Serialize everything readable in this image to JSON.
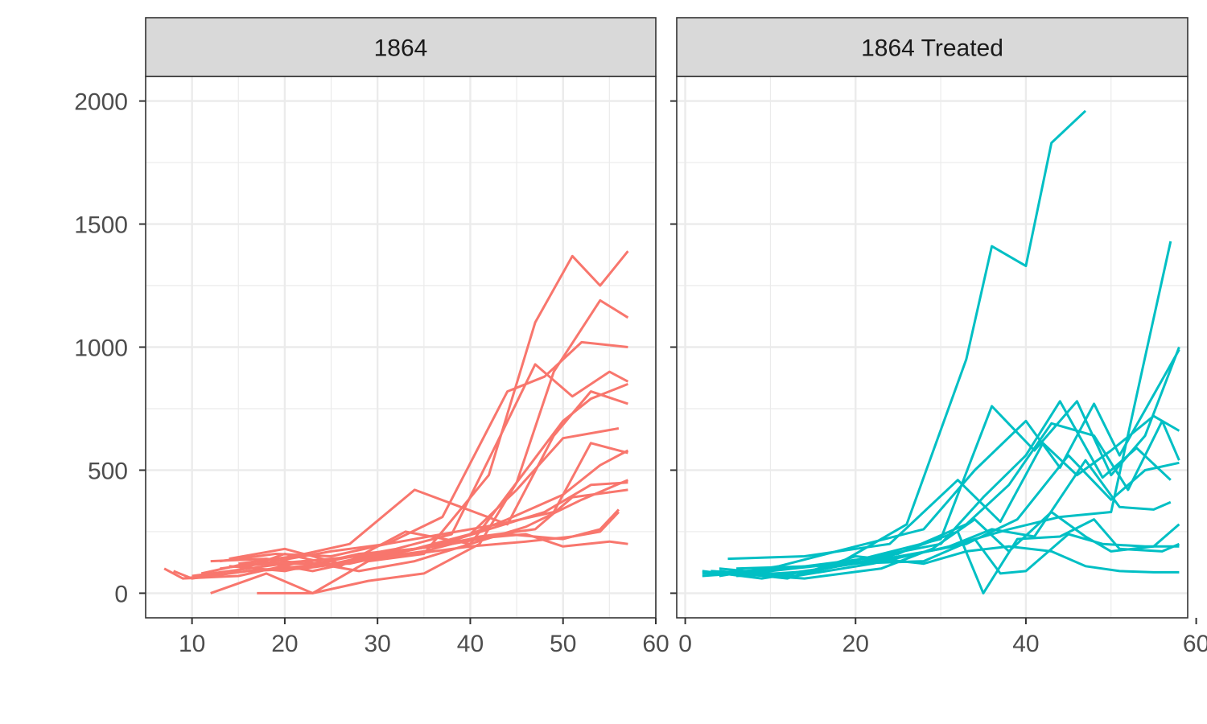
{
  "chart_data": [
    {
      "type": "line",
      "panel": "1864",
      "strip_label": "1864",
      "color": "#F8766D",
      "xlim": [
        5,
        60
      ],
      "ylim": [
        -100,
        2100
      ],
      "x_ticks": [
        10,
        20,
        30,
        40,
        50,
        60
      ],
      "x_tick_labels": [
        "10",
        "20",
        "30",
        "40",
        "50",
        "60"
      ],
      "y_ticks": [
        0,
        500,
        1000,
        1500,
        2000
      ],
      "y_tick_labels": [
        "0",
        "500",
        "1000",
        "1500",
        "2000"
      ],
      "grid": true,
      "series": [
        {
          "x": [
            12,
            18,
            23,
            29,
            35,
            42,
            47,
            51,
            54,
            57
          ],
          "y": [
            0,
            80,
            0,
            130,
            160,
            480,
            1100,
            1370,
            1250,
            1390
          ]
        },
        {
          "x": [
            17,
            23,
            29,
            35,
            41,
            45,
            49,
            54,
            57
          ],
          "y": [
            0,
            0,
            50,
            80,
            200,
            450,
            900,
            1190,
            1120
          ]
        },
        {
          "x": [
            13,
            19,
            25,
            31,
            37,
            44,
            48,
            52,
            57
          ],
          "y": [
            130,
            160,
            150,
            200,
            310,
            820,
            880,
            1020,
            1000
          ]
        },
        {
          "x": [
            14,
            20,
            26,
            32,
            38,
            43,
            47,
            51,
            55,
            57
          ],
          "y": [
            110,
            90,
            140,
            180,
            240,
            620,
            930,
            800,
            900,
            860
          ]
        },
        {
          "x": [
            7,
            9,
            14,
            20,
            26,
            33,
            40,
            45,
            50,
            53,
            57
          ],
          "y": [
            100,
            60,
            80,
            160,
            110,
            250,
            200,
            450,
            700,
            790,
            850
          ]
        },
        {
          "x": [
            15,
            21,
            27,
            34,
            39,
            44,
            49,
            53,
            57
          ],
          "y": [
            120,
            150,
            200,
            420,
            350,
            280,
            640,
            820,
            770
          ]
        },
        {
          "x": [
            8,
            10,
            16,
            22,
            28,
            34,
            40,
            45,
            50,
            56
          ],
          "y": [
            90,
            60,
            90,
            110,
            160,
            180,
            240,
            420,
            630,
            670
          ]
        },
        {
          "x": [
            9,
            15,
            21,
            27,
            33,
            38,
            44,
            50,
            54,
            57
          ],
          "y": [
            60,
            70,
            120,
            120,
            170,
            210,
            300,
            400,
            520,
            580
          ]
        },
        {
          "x": [
            12,
            18,
            24,
            30,
            36,
            42,
            48,
            53,
            57
          ],
          "y": [
            130,
            140,
            110,
            160,
            190,
            260,
            330,
            440,
            450
          ]
        },
        {
          "x": [
            10,
            16,
            22,
            28,
            34,
            40,
            46,
            52,
            57
          ],
          "y": [
            70,
            100,
            130,
            90,
            130,
            200,
            270,
            380,
            460
          ]
        },
        {
          "x": [
            11,
            17,
            23,
            29,
            35,
            41,
            47,
            51,
            57
          ],
          "y": [
            80,
            130,
            90,
            140,
            170,
            230,
            260,
            390,
            420
          ]
        },
        {
          "x": [
            13,
            19,
            25,
            31,
            37,
            43,
            49,
            53,
            57
          ],
          "y": [
            100,
            130,
            170,
            200,
            240,
            280,
            330,
            610,
            570
          ]
        },
        {
          "x": [
            14,
            20,
            26,
            32,
            38,
            44,
            50,
            54,
            56
          ],
          "y": [
            140,
            180,
            120,
            170,
            200,
            240,
            220,
            260,
            340
          ]
        },
        {
          "x": [
            15,
            22,
            28,
            34,
            40,
            46,
            50,
            55,
            57
          ],
          "y": [
            110,
            130,
            150,
            180,
            220,
            240,
            190,
            210,
            200
          ]
        },
        {
          "x": [
            16,
            22,
            28,
            34,
            40,
            46,
            51,
            54,
            56
          ],
          "y": [
            90,
            100,
            130,
            160,
            190,
            210,
            230,
            250,
            330
          ]
        }
      ]
    },
    {
      "type": "line",
      "panel": "1864 Treated",
      "strip_label": "1864 Treated",
      "color": "#00BFC4",
      "xlim": [
        -1,
        59
      ],
      "ylim": [
        -100,
        2100
      ],
      "x_ticks": [
        0,
        20,
        40,
        60
      ],
      "x_tick_labels": [
        "0",
        "20",
        "40",
        "60"
      ],
      "y_ticks": [
        0,
        500,
        1000,
        1500,
        2000
      ],
      "y_tick_labels": [
        "0",
        "500",
        "1000",
        "1500",
        "2000"
      ],
      "grid": true,
      "series": [
        {
          "x": [
            2,
            10,
            18,
            26,
            33,
            36,
            40,
            43,
            47
          ],
          "y": [
            70,
            90,
            120,
            280,
            950,
            1410,
            1330,
            1830,
            1960
          ]
        },
        {
          "x": [
            2,
            12,
            22,
            30,
            38,
            44,
            50,
            54,
            57
          ],
          "y": [
            80,
            80,
            130,
            180,
            260,
            310,
            330,
            960,
            1430
          ]
        },
        {
          "x": [
            3,
            13,
            22,
            30,
            36,
            41,
            46,
            50,
            54,
            58
          ],
          "y": [
            90,
            70,
            150,
            220,
            760,
            580,
            780,
            480,
            640,
            1000
          ]
        },
        {
          "x": [
            4,
            11,
            20,
            28,
            34,
            40,
            44,
            48,
            51,
            58
          ],
          "y": [
            70,
            110,
            190,
            260,
            500,
            700,
            510,
            770,
            560,
            990
          ]
        },
        {
          "x": [
            5,
            14,
            24,
            32,
            37,
            42,
            46,
            50,
            55,
            58
          ],
          "y": [
            140,
            150,
            200,
            460,
            290,
            610,
            480,
            580,
            720,
            660
          ]
        },
        {
          "x": [
            6,
            15,
            25,
            33,
            38,
            43,
            48,
            52,
            56,
            58
          ],
          "y": [
            100,
            110,
            160,
            280,
            440,
            690,
            640,
            420,
            700,
            540
          ]
        },
        {
          "x": [
            3,
            12,
            21,
            30,
            35,
            40,
            44,
            49,
            53,
            57
          ],
          "y": [
            80,
            100,
            140,
            200,
            390,
            560,
            780,
            470,
            590,
            460
          ]
        },
        {
          "x": [
            2,
            9,
            18,
            27,
            33,
            39,
            45,
            50,
            54,
            58
          ],
          "y": [
            90,
            60,
            110,
            160,
            200,
            300,
            560,
            380,
            500,
            530
          ]
        },
        {
          "x": [
            4,
            13,
            22,
            31,
            36,
            41,
            47,
            51,
            55,
            57
          ],
          "y": [
            100,
            70,
            120,
            190,
            260,
            230,
            540,
            350,
            340,
            370
          ]
        },
        {
          "x": [
            5,
            14,
            23,
            29,
            34,
            38,
            43,
            47,
            50,
            55,
            58
          ],
          "y": [
            80,
            60,
            100,
            180,
            300,
            170,
            330,
            230,
            170,
            190,
            280
          ]
        },
        {
          "x": [
            6,
            15,
            24,
            32,
            35,
            39,
            44,
            48,
            51,
            56,
            58
          ],
          "y": [
            70,
            90,
            150,
            250,
            0,
            220,
            230,
            300,
            180,
            170,
            200
          ]
        },
        {
          "x": [
            3,
            11,
            19,
            28,
            34,
            37,
            40,
            45,
            49,
            54,
            58
          ],
          "y": [
            80,
            100,
            120,
            130,
            220,
            80,
            90,
            240,
            200,
            190,
            190
          ]
        },
        {
          "x": [
            4,
            12,
            20,
            28,
            33,
            38,
            43,
            47,
            51,
            55,
            58
          ],
          "y": [
            90,
            60,
            150,
            120,
            170,
            190,
            170,
            110,
            90,
            85,
            85
          ]
        }
      ]
    }
  ]
}
